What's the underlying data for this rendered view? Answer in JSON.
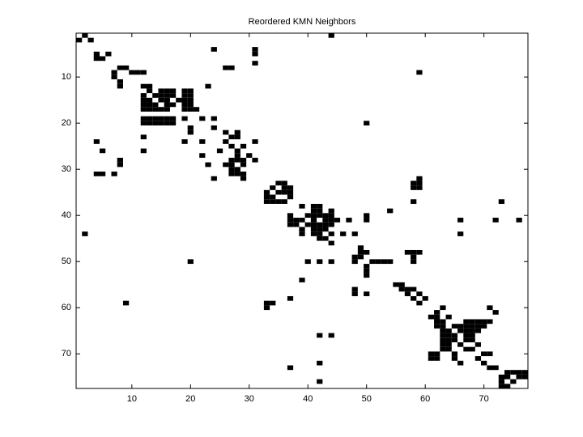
{
  "chart_data": {
    "type": "spy",
    "title": "Reordered KMN Neighbors",
    "color": "#000000",
    "xlim": [
      0.5,
      77.5
    ],
    "ylim": [
      0.5,
      77.5
    ],
    "y_reversed": true,
    "xticks": [
      10,
      20,
      30,
      40,
      50,
      60,
      70
    ],
    "yticks": [
      10,
      20,
      30,
      40,
      50,
      60,
      70
    ],
    "points": [
      [
        2,
        1
      ],
      [
        44,
        1
      ],
      [
        1,
        2
      ],
      [
        3,
        2
      ],
      [
        24,
        4
      ],
      [
        31,
        4
      ],
      [
        4,
        5
      ],
      [
        6,
        5
      ],
      [
        31,
        5
      ],
      [
        4,
        6
      ],
      [
        5,
        6
      ],
      [
        31,
        7
      ],
      [
        8,
        8
      ],
      [
        9,
        8
      ],
      [
        26,
        8
      ],
      [
        27,
        8
      ],
      [
        7,
        9
      ],
      [
        10,
        9
      ],
      [
        11,
        9
      ],
      [
        12,
        9
      ],
      [
        59,
        9
      ],
      [
        7,
        10
      ],
      [
        8,
        11
      ],
      [
        8,
        12
      ],
      [
        12,
        12
      ],
      [
        13,
        12
      ],
      [
        23,
        12
      ],
      [
        13,
        13
      ],
      [
        15,
        13
      ],
      [
        16,
        13
      ],
      [
        17,
        13
      ],
      [
        19,
        13
      ],
      [
        20,
        13
      ],
      [
        12,
        14
      ],
      [
        14,
        14
      ],
      [
        15,
        14
      ],
      [
        16,
        14
      ],
      [
        17,
        14
      ],
      [
        19,
        14
      ],
      [
        20,
        14
      ],
      [
        12,
        15
      ],
      [
        13,
        15
      ],
      [
        15,
        15
      ],
      [
        16,
        15
      ],
      [
        18,
        15
      ],
      [
        19,
        15
      ],
      [
        20,
        15
      ],
      [
        12,
        16
      ],
      [
        13,
        16
      ],
      [
        14,
        16
      ],
      [
        16,
        16
      ],
      [
        17,
        16
      ],
      [
        19,
        16
      ],
      [
        20,
        16
      ],
      [
        12,
        17
      ],
      [
        13,
        17
      ],
      [
        14,
        17
      ],
      [
        15,
        17
      ],
      [
        16,
        17
      ],
      [
        19,
        17
      ],
      [
        20,
        17
      ],
      [
        21,
        17
      ],
      [
        12,
        19
      ],
      [
        13,
        19
      ],
      [
        14,
        19
      ],
      [
        15,
        19
      ],
      [
        16,
        19
      ],
      [
        17,
        19
      ],
      [
        19,
        19
      ],
      [
        22,
        19
      ],
      [
        24,
        19
      ],
      [
        12,
        20
      ],
      [
        13,
        20
      ],
      [
        14,
        20
      ],
      [
        15,
        20
      ],
      [
        16,
        20
      ],
      [
        17,
        20
      ],
      [
        50,
        20
      ],
      [
        20,
        21
      ],
      [
        24,
        21
      ],
      [
        20,
        22
      ],
      [
        26,
        22
      ],
      [
        28,
        22
      ],
      [
        12,
        23
      ],
      [
        27,
        23
      ],
      [
        28,
        23
      ],
      [
        4,
        24
      ],
      [
        19,
        24
      ],
      [
        22,
        24
      ],
      [
        26,
        24
      ],
      [
        31,
        24
      ],
      [
        27,
        25
      ],
      [
        29,
        25
      ],
      [
        5,
        26
      ],
      [
        12,
        26
      ],
      [
        25,
        26
      ],
      [
        28,
        26
      ],
      [
        22,
        27
      ],
      [
        28,
        27
      ],
      [
        30,
        27
      ],
      [
        8,
        28
      ],
      [
        27,
        28
      ],
      [
        28,
        28
      ],
      [
        29,
        28
      ],
      [
        31,
        28
      ],
      [
        8,
        29
      ],
      [
        23,
        29
      ],
      [
        26,
        29
      ],
      [
        27,
        29
      ],
      [
        29,
        29
      ],
      [
        27,
        30
      ],
      [
        28,
        30
      ],
      [
        4,
        31
      ],
      [
        5,
        31
      ],
      [
        7,
        31
      ],
      [
        27,
        31
      ],
      [
        28,
        31
      ],
      [
        29,
        31
      ],
      [
        24,
        32
      ],
      [
        29,
        32
      ],
      [
        59,
        32
      ],
      [
        35,
        33
      ],
      [
        36,
        33
      ],
      [
        58,
        33
      ],
      [
        59,
        33
      ],
      [
        34,
        34
      ],
      [
        36,
        34
      ],
      [
        37,
        34
      ],
      [
        58,
        34
      ],
      [
        59,
        34
      ],
      [
        33,
        35
      ],
      [
        35,
        35
      ],
      [
        36,
        35
      ],
      [
        37,
        35
      ],
      [
        33,
        36
      ],
      [
        34,
        36
      ],
      [
        37,
        36
      ],
      [
        33,
        37
      ],
      [
        34,
        37
      ],
      [
        35,
        37
      ],
      [
        36,
        37
      ],
      [
        58,
        37
      ],
      [
        73,
        37
      ],
      [
        39,
        38
      ],
      [
        41,
        38
      ],
      [
        42,
        38
      ],
      [
        41,
        39
      ],
      [
        42,
        39
      ],
      [
        44,
        39
      ],
      [
        54,
        39
      ],
      [
        37,
        40
      ],
      [
        40,
        40
      ],
      [
        41,
        40
      ],
      [
        42,
        40
      ],
      [
        43,
        40
      ],
      [
        44,
        40
      ],
      [
        50,
        40
      ],
      [
        37,
        41
      ],
      [
        38,
        41
      ],
      [
        39,
        41
      ],
      [
        41,
        41
      ],
      [
        43,
        41
      ],
      [
        44,
        41
      ],
      [
        45,
        41
      ],
      [
        47,
        41
      ],
      [
        50,
        41
      ],
      [
        66,
        41
      ],
      [
        72,
        41
      ],
      [
        76,
        41
      ],
      [
        37,
        42
      ],
      [
        38,
        42
      ],
      [
        40,
        42
      ],
      [
        41,
        42
      ],
      [
        42,
        42
      ],
      [
        43,
        42
      ],
      [
        44,
        42
      ],
      [
        39,
        43
      ],
      [
        41,
        43
      ],
      [
        42,
        43
      ],
      [
        43,
        43
      ],
      [
        2,
        44
      ],
      [
        39,
        44
      ],
      [
        41,
        44
      ],
      [
        42,
        44
      ],
      [
        44,
        44
      ],
      [
        46,
        44
      ],
      [
        48,
        44
      ],
      [
        66,
        44
      ],
      [
        42,
        45
      ],
      [
        43,
        45
      ],
      [
        44,
        46
      ],
      [
        49,
        47
      ],
      [
        49,
        48
      ],
      [
        50,
        48
      ],
      [
        57,
        48
      ],
      [
        58,
        48
      ],
      [
        59,
        48
      ],
      [
        48,
        49
      ],
      [
        49,
        49
      ],
      [
        58,
        49
      ],
      [
        20,
        50
      ],
      [
        40,
        50
      ],
      [
        42,
        50
      ],
      [
        44,
        50
      ],
      [
        48,
        50
      ],
      [
        51,
        50
      ],
      [
        52,
        50
      ],
      [
        53,
        50
      ],
      [
        54,
        50
      ],
      [
        58,
        50
      ],
      [
        50,
        51
      ],
      [
        50,
        52
      ],
      [
        50,
        53
      ],
      [
        39,
        54
      ],
      [
        55,
        55
      ],
      [
        56,
        55
      ],
      [
        48,
        56
      ],
      [
        56,
        56
      ],
      [
        57,
        56
      ],
      [
        58,
        56
      ],
      [
        48,
        57
      ],
      [
        50,
        57
      ],
      [
        57,
        57
      ],
      [
        59,
        57
      ],
      [
        37,
        58
      ],
      [
        58,
        58
      ],
      [
        60,
        58
      ],
      [
        9,
        59
      ],
      [
        33,
        59
      ],
      [
        34,
        59
      ],
      [
        59,
        59
      ],
      [
        33,
        60
      ],
      [
        63,
        60
      ],
      [
        71,
        60
      ],
      [
        62,
        61
      ],
      [
        72,
        61
      ],
      [
        61,
        62
      ],
      [
        62,
        62
      ],
      [
        64,
        62
      ],
      [
        62,
        63
      ],
      [
        63,
        63
      ],
      [
        67,
        63
      ],
      [
        68,
        63
      ],
      [
        69,
        63
      ],
      [
        70,
        63
      ],
      [
        71,
        63
      ],
      [
        62,
        64
      ],
      [
        63,
        64
      ],
      [
        65,
        64
      ],
      [
        66,
        64
      ],
      [
        67,
        64
      ],
      [
        68,
        64
      ],
      [
        69,
        64
      ],
      [
        70,
        64
      ],
      [
        63,
        65
      ],
      [
        64,
        65
      ],
      [
        66,
        65
      ],
      [
        67,
        65
      ],
      [
        68,
        65
      ],
      [
        69,
        65
      ],
      [
        42,
        66
      ],
      [
        44,
        66
      ],
      [
        63,
        66
      ],
      [
        64,
        66
      ],
      [
        65,
        66
      ],
      [
        67,
        66
      ],
      [
        68,
        66
      ],
      [
        63,
        67
      ],
      [
        64,
        67
      ],
      [
        65,
        67
      ],
      [
        67,
        67
      ],
      [
        68,
        67
      ],
      [
        63,
        68
      ],
      [
        64,
        68
      ],
      [
        66,
        68
      ],
      [
        69,
        68
      ],
      [
        63,
        69
      ],
      [
        64,
        69
      ],
      [
        67,
        69
      ],
      [
        68,
        69
      ],
      [
        61,
        70
      ],
      [
        62,
        70
      ],
      [
        65,
        70
      ],
      [
        70,
        70
      ],
      [
        71,
        70
      ],
      [
        61,
        71
      ],
      [
        62,
        71
      ],
      [
        65,
        71
      ],
      [
        69,
        71
      ],
      [
        42,
        72
      ],
      [
        66,
        72
      ],
      [
        70,
        72
      ],
      [
        37,
        73
      ],
      [
        71,
        73
      ],
      [
        72,
        73
      ],
      [
        74,
        74
      ],
      [
        75,
        74
      ],
      [
        76,
        74
      ],
      [
        77,
        74
      ],
      [
        73,
        75
      ],
      [
        74,
        75
      ],
      [
        76,
        75
      ],
      [
        77,
        75
      ],
      [
        42,
        76
      ],
      [
        73,
        76
      ],
      [
        75,
        76
      ],
      [
        73,
        77
      ],
      [
        74,
        77
      ]
    ]
  }
}
